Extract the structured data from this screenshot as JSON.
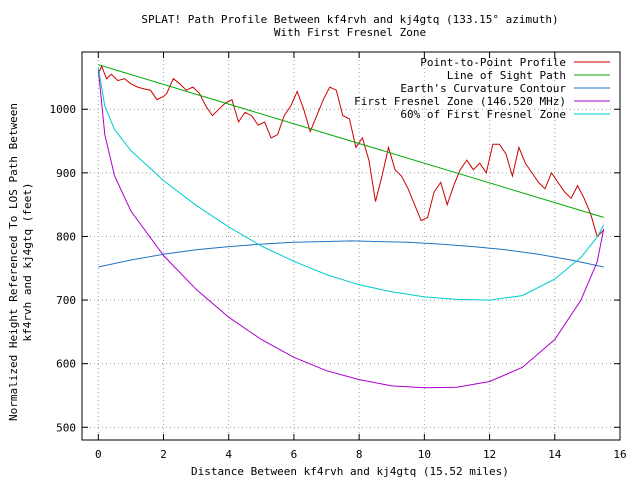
{
  "chart_data": {
    "type": "line",
    "title": "SPLAT! Path Profile Between kf4rvh and kj4gtq (133.15° azimuth)",
    "subtitle": "With First Fresnel Zone",
    "xlabel": "Distance Between kf4rvh and kj4gtq (15.52 miles)",
    "ylabel_line1": "Normalized Height Referenced To LOS Path Between",
    "ylabel_line2": "kf4rvh and kj4gtq (feet)",
    "xlim": [
      -0.5,
      16
    ],
    "ylim": [
      480,
      1090
    ],
    "x_ticks": [
      0,
      2,
      4,
      6,
      8,
      10,
      12,
      14,
      16
    ],
    "y_ticks": [
      500,
      600,
      700,
      800,
      900,
      1000
    ],
    "x_tick_labels": [
      "0",
      "2",
      "4",
      "6",
      "8",
      "10",
      "12",
      "14",
      "16"
    ],
    "y_tick_labels": [
      "500",
      "600",
      "700",
      "800",
      "900",
      "1000"
    ],
    "grid": true,
    "legend_position": "top-right",
    "series": [
      {
        "name": "Point-to-Point Profile",
        "color": "#cc0000",
        "x": [
          0,
          0.1,
          0.25,
          0.4,
          0.6,
          0.8,
          1.0,
          1.2,
          1.4,
          1.6,
          1.8,
          2.0,
          2.1,
          2.3,
          2.5,
          2.7,
          2.9,
          3.1,
          3.3,
          3.5,
          3.7,
          3.9,
          4.1,
          4.3,
          4.5,
          4.7,
          4.9,
          5.1,
          5.3,
          5.5,
          5.7,
          5.9,
          6.1,
          6.3,
          6.5,
          6.7,
          6.9,
          7.1,
          7.3,
          7.5,
          7.7,
          7.9,
          8.1,
          8.3,
          8.5,
          8.7,
          8.9,
          9.1,
          9.3,
          9.5,
          9.7,
          9.9,
          10.1,
          10.3,
          10.5,
          10.7,
          10.9,
          11.1,
          11.3,
          11.5,
          11.7,
          11.9,
          12.1,
          12.3,
          12.5,
          12.7,
          12.9,
          13.1,
          13.3,
          13.5,
          13.7,
          13.9,
          14.1,
          14.3,
          14.5,
          14.7,
          14.9,
          15.1,
          15.3,
          15.5
        ],
        "y": [
          1055,
          1068,
          1048,
          1055,
          1045,
          1048,
          1040,
          1035,
          1032,
          1030,
          1015,
          1020,
          1025,
          1048,
          1040,
          1030,
          1035,
          1025,
          1005,
          990,
          1000,
          1010,
          1015,
          980,
          995,
          990,
          975,
          980,
          955,
          960,
          990,
          1005,
          1028,
          1000,
          965,
          990,
          1015,
          1035,
          1030,
          990,
          985,
          940,
          955,
          920,
          855,
          895,
          940,
          905,
          895,
          875,
          850,
          825,
          830,
          870,
          885,
          850,
          880,
          905,
          920,
          905,
          915,
          900,
          945,
          945,
          930,
          895,
          940,
          915,
          900,
          885,
          875,
          900,
          885,
          870,
          860,
          880,
          860,
          835,
          800,
          810
        ]
      },
      {
        "name": "Line of Sight Path",
        "color": "#00aa00",
        "x": [
          0,
          15.5
        ],
        "y": [
          1070,
          830
        ]
      },
      {
        "name": "Earth's Curvature Contour",
        "color": "#1f73c2",
        "x": [
          0,
          1,
          2,
          3,
          4,
          5,
          6,
          7,
          7.75,
          8.5,
          9.5,
          10.5,
          11.5,
          12.5,
          13.5,
          14.5,
          15.5
        ],
        "y": [
          752,
          763,
          772,
          779,
          784,
          788,
          791,
          792,
          793,
          792,
          791,
          788,
          784,
          779,
          772,
          763,
          752
        ]
      },
      {
        "name": "First Fresnel Zone (146.520 MHz)",
        "color": "#aa00cc",
        "x": [
          0,
          0.2,
          0.5,
          1,
          2,
          3,
          4,
          5,
          6,
          7,
          8,
          9,
          10,
          11,
          12,
          13,
          14,
          14.8,
          15.3,
          15.5
        ],
        "y": [
          1063,
          960,
          895,
          840,
          770,
          717,
          673,
          638,
          610,
          589,
          575,
          565,
          562,
          563,
          572,
          594,
          638,
          700,
          760,
          812
        ]
      },
      {
        "name": "60% of First Fresnel Zone",
        "color": "#00cccc",
        "x": [
          0,
          0.2,
          0.5,
          1,
          2,
          3,
          4,
          5,
          6,
          7,
          8,
          9,
          10,
          11,
          12,
          13,
          14,
          14.8,
          15.3,
          15.5
        ],
        "y": [
          1066,
          1005,
          968,
          935,
          888,
          849,
          815,
          785,
          761,
          740,
          724,
          713,
          705,
          701,
          700,
          707,
          733,
          767,
          799,
          818
        ]
      }
    ]
  }
}
